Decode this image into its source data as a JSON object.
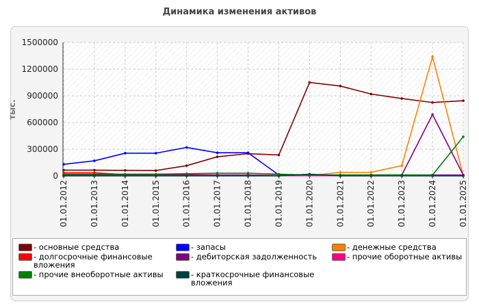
{
  "chart_data": {
    "type": "line",
    "title": "Динамика изменения активов",
    "ylabel": "тыс.",
    "categories": [
      "01.01.2012",
      "01.01.2013",
      "01.01.2014",
      "01.01.2015",
      "01.01.2016",
      "01.01.2017",
      "01.01.2018",
      "01.01.2019",
      "01.01.2020",
      "01.01.2021",
      "01.01.2022",
      "01.01.2023",
      "01.01.2024",
      "01.01.2025"
    ],
    "ylim": [
      0,
      1500000
    ],
    "yticks": [
      0,
      300000,
      600000,
      900000,
      1200000,
      1500000
    ],
    "grid": true,
    "series": [
      {
        "name": "- основные средства",
        "color": "#800000",
        "values": [
          65000,
          65000,
          62000,
          60000,
          115000,
          215000,
          250000,
          235000,
          1050000,
          1010000,
          920000,
          870000,
          825000,
          845000
        ]
      },
      {
        "name": "- запасы",
        "color": "#0000ff",
        "values": [
          130000,
          170000,
          255000,
          255000,
          320000,
          260000,
          260000,
          10000,
          10000,
          10000,
          10000,
          10000,
          10000,
          10000
        ]
      },
      {
        "name": "- денежные средства",
        "color": "#ff8000",
        "values": [
          5000,
          5000,
          5000,
          5000,
          5000,
          5000,
          5000,
          5000,
          5000,
          40000,
          40000,
          115000,
          1340000,
          5000
        ]
      },
      {
        "name": "- долгосрочные финансовые вложения",
        "color": "#ff0000",
        "values": [
          35000,
          35000,
          15000,
          15000,
          15000,
          10000,
          10000,
          5000,
          5000,
          5000,
          5000,
          5000,
          5000,
          5000
        ]
      },
      {
        "name": "- дебиторская задолженность",
        "color": "#800080",
        "values": [
          10000,
          10000,
          10000,
          10000,
          10000,
          10000,
          10000,
          5000,
          5000,
          10000,
          10000,
          10000,
          690000,
          10000
        ]
      },
      {
        "name": "- прочие оборотные активы",
        "color": "#ff0080",
        "values": [
          2000,
          2000,
          2000,
          2000,
          2000,
          2000,
          2000,
          2000,
          2000,
          2000,
          2000,
          2000,
          2000,
          2000
        ]
      },
      {
        "name": "- прочие внеоборотные активы",
        "color": "#008000",
        "values": [
          20000,
          20000,
          20000,
          20000,
          25000,
          30000,
          30000,
          20000,
          10000,
          10000,
          10000,
          10000,
          10000,
          440000
        ]
      },
      {
        "name": "- краткосрочные финансовые вложения",
        "color": "#004040",
        "values": [
          0,
          0,
          0,
          0,
          0,
          0,
          0,
          0,
          20000,
          0,
          0,
          0,
          0,
          0
        ]
      }
    ]
  }
}
